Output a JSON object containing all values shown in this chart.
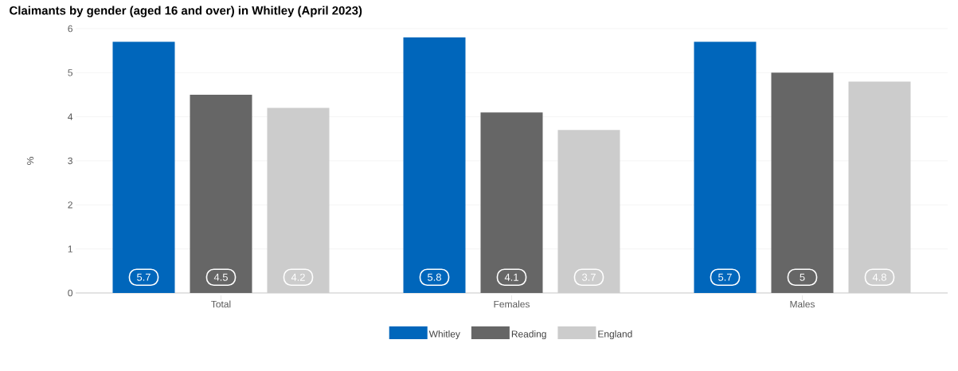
{
  "chart_data": {
    "type": "bar",
    "title": "Claimants by gender (aged 16 and over) in Whitley (April 2023)",
    "ylabel": "%",
    "categories": [
      "Total",
      "Females",
      "Males"
    ],
    "series": [
      {
        "name": "Whitley",
        "color": "#0066bb",
        "values": [
          5.7,
          5.8,
          5.7
        ]
      },
      {
        "name": "Reading",
        "color": "#666666",
        "values": [
          4.5,
          4.1,
          5
        ]
      },
      {
        "name": "England",
        "color": "#cccccc",
        "values": [
          4.2,
          3.7,
          4.8
        ]
      }
    ],
    "ylim": [
      0,
      6
    ],
    "yticks": [
      0,
      1,
      2,
      3,
      4,
      5,
      6
    ],
    "grid": "y",
    "legend": "bottom",
    "data_labels": true
  }
}
